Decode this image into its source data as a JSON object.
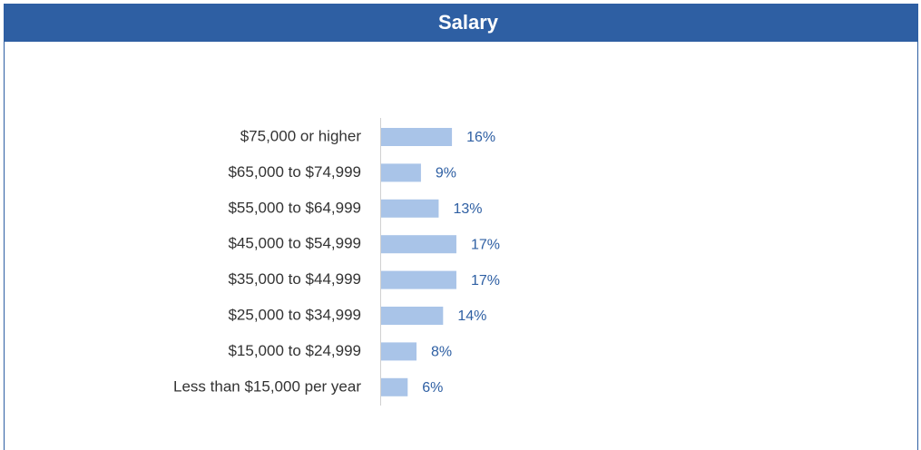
{
  "chart_data": {
    "type": "hbar",
    "title": "Salary",
    "categories": [
      "$75,000 or higher",
      "$65,000 to $74,999",
      "$55,000 to $64,999",
      "$45,000 to $54,999",
      "$35,000 to $44,999",
      "$25,000 to $34,999",
      "$15,000 to $24,999",
      "Less than $15,000 per year"
    ],
    "values": [
      16,
      9,
      13,
      17,
      17,
      14,
      8,
      6
    ],
    "value_labels": [
      "16%",
      "9%",
      "13%",
      "17%",
      "17%",
      "14%",
      "8%",
      "6%"
    ],
    "color": "#a9c4e8"
  }
}
